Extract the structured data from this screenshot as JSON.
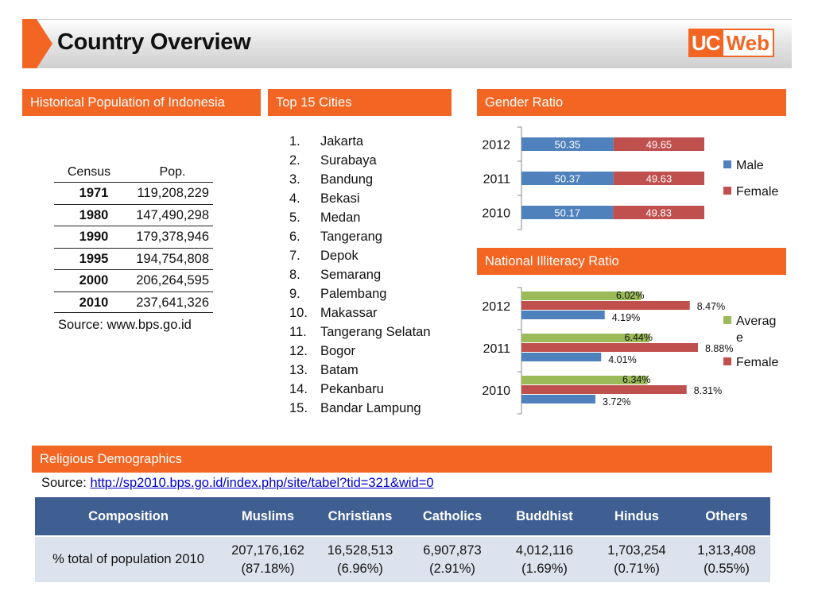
{
  "page": {
    "title": "Country Overview",
    "logo": {
      "part1": "UC",
      "part2": "Web"
    }
  },
  "sections": {
    "population": "Historical Population of Indonesia",
    "cities": "Top 15 Cities",
    "gender": "Gender Ratio",
    "illiteracy": "National Illiteracy Ratio",
    "religion": "Religious Demographics"
  },
  "population": {
    "headers": [
      "Census",
      "Pop."
    ],
    "rows": [
      {
        "year": "1971",
        "pop": "119,208,229"
      },
      {
        "year": "1980",
        "pop": "147,490,298"
      },
      {
        "year": "1990",
        "pop": "179,378,946"
      },
      {
        "year": "1995",
        "pop": "194,754,808"
      },
      {
        "year": "2000",
        "pop": "206,264,595"
      },
      {
        "year": "2010",
        "pop": "237,641,326"
      }
    ],
    "source": "Source: www.bps.go.id"
  },
  "cities": [
    {
      "num": "1.",
      "name": "Jakarta"
    },
    {
      "num": "2.",
      "name": "Surabaya"
    },
    {
      "num": "3.",
      "name": "Bandung"
    },
    {
      "num": "4.",
      "name": "Bekasi"
    },
    {
      "num": "5.",
      "name": "Medan"
    },
    {
      "num": "6.",
      "name": "Tangerang"
    },
    {
      "num": "7.",
      "name": "Depok"
    },
    {
      "num": "8.",
      "name": "Semarang"
    },
    {
      "num": "9.",
      "name": "Palembang"
    },
    {
      "num": "10.",
      "name": "Makassar"
    },
    {
      "num": "11.",
      "name": "Tangerang Selatan"
    },
    {
      "num": "12.",
      "name": "Bogor"
    },
    {
      "num": "13.",
      "name": "Batam"
    },
    {
      "num": "14.",
      "name": "Pekanbaru"
    },
    {
      "num": "15.",
      "name": "Bandar Lampung"
    }
  ],
  "religion": {
    "source_label": "Source: ",
    "source_url": "http://sp2010.bps.go.id/index.php/site/tabel?tid=321&wid=0",
    "headers": [
      "Composition",
      "Muslims",
      "Christians",
      "Catholics",
      "Buddhist",
      "Hindus",
      "Others"
    ],
    "row_label": "% total of population 2010",
    "cells": [
      {
        "count": "207,176,162",
        "pct": "(87.18%)"
      },
      {
        "count": "16,528,513",
        "pct": "(6.96%)"
      },
      {
        "count": "6,907,873",
        "pct": "(2.91%)"
      },
      {
        "count": "4,012,116",
        "pct": "(1.69%)"
      },
      {
        "count": "1,703,254",
        "pct": "(0.71%)"
      },
      {
        "count": "1,313,408",
        "pct": "(0.55%)"
      }
    ]
  },
  "colors": {
    "orange": "#f26522",
    "blue": "#4f81bd",
    "red": "#c0504d",
    "green": "#9bbb59",
    "table_header": "#3f5f93",
    "table_row": "#dde3ee"
  },
  "chart_data": [
    {
      "type": "bar",
      "orientation": "horizontal",
      "stacked": true,
      "title": "Gender Ratio",
      "categories": [
        "2012",
        "2011",
        "2010"
      ],
      "series": [
        {
          "name": "Male",
          "color": "#4f81bd",
          "values": [
            50.35,
            50.37,
            50.17
          ],
          "labels": [
            "50.35",
            "50.37",
            "50.17"
          ]
        },
        {
          "name": "Female",
          "color": "#c0504d",
          "values": [
            49.65,
            49.63,
            49.83
          ],
          "labels": [
            "49.65",
            "49.63",
            "49.83"
          ]
        }
      ],
      "xlim": [
        0,
        100
      ],
      "legend": "right"
    },
    {
      "type": "bar",
      "orientation": "horizontal",
      "stacked": false,
      "title": "National Illiteracy Ratio",
      "categories": [
        "2012",
        "2011",
        "2010"
      ],
      "series": [
        {
          "name": "Average",
          "legend_text": [
            "Averag",
            "e"
          ],
          "color": "#9bbb59",
          "values": [
            6.02,
            6.44,
            6.34
          ],
          "labels": [
            "6.02%",
            "6.44%",
            "6.34%"
          ]
        },
        {
          "name": "Female",
          "legend_text": [
            "Female"
          ],
          "color": "#c0504d",
          "values": [
            8.47,
            8.88,
            8.31
          ],
          "labels": [
            "8.47%",
            "8.88%",
            "8.31%"
          ]
        },
        {
          "name": "",
          "legend_text": [],
          "color": "#4f81bd",
          "values": [
            4.19,
            4.01,
            3.72
          ],
          "labels": [
            "4.19%",
            "4.01%",
            "3.72%"
          ]
        }
      ],
      "xlim": [
        0,
        10
      ],
      "legend": "right"
    }
  ]
}
